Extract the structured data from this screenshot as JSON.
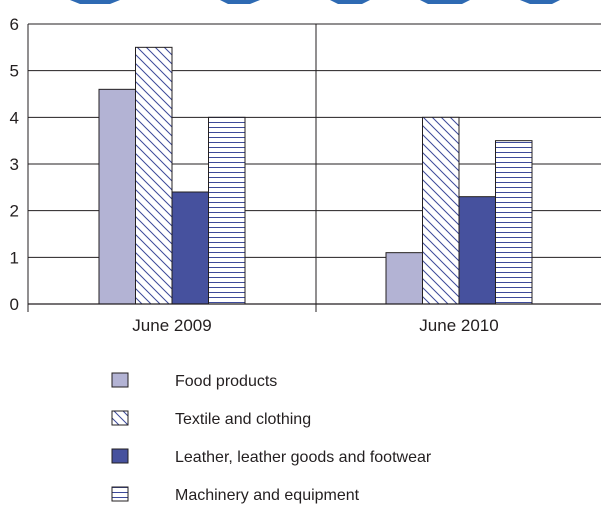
{
  "chart_data": {
    "type": "bar",
    "title": "",
    "xlabel": "",
    "ylabel": "",
    "categories": [
      "June 2009",
      "June 2010"
    ],
    "ylim": [
      0,
      6
    ],
    "yticks": [
      "0",
      "1",
      "2",
      "3",
      "4",
      "5",
      "6"
    ],
    "grid": "horizontal",
    "legend_position": "bottom",
    "series": [
      {
        "name": "Food products",
        "values": [
          4.6,
          1.1
        ],
        "fill": "#b3b3d4",
        "pattern": "solid"
      },
      {
        "name": "Textile and clothing",
        "values": [
          5.5,
          4.0
        ],
        "fill": "#ffffff",
        "pattern": "diagonal-hatch"
      },
      {
        "name": "Leather, leather goods and footwear",
        "values": [
          2.4,
          2.3
        ],
        "fill": "#46519e",
        "pattern": "solid"
      },
      {
        "name": "Machinery and equipment",
        "values": [
          4.0,
          3.5
        ],
        "fill": "#ffffff",
        "pattern": "horizontal-hatch"
      }
    ]
  },
  "colors": {
    "axis": "#231f20",
    "grid": "#231f20",
    "bar_stroke": "#231f20",
    "hatch": "#3d4a9a",
    "title_blue": "#2e6ab3"
  }
}
